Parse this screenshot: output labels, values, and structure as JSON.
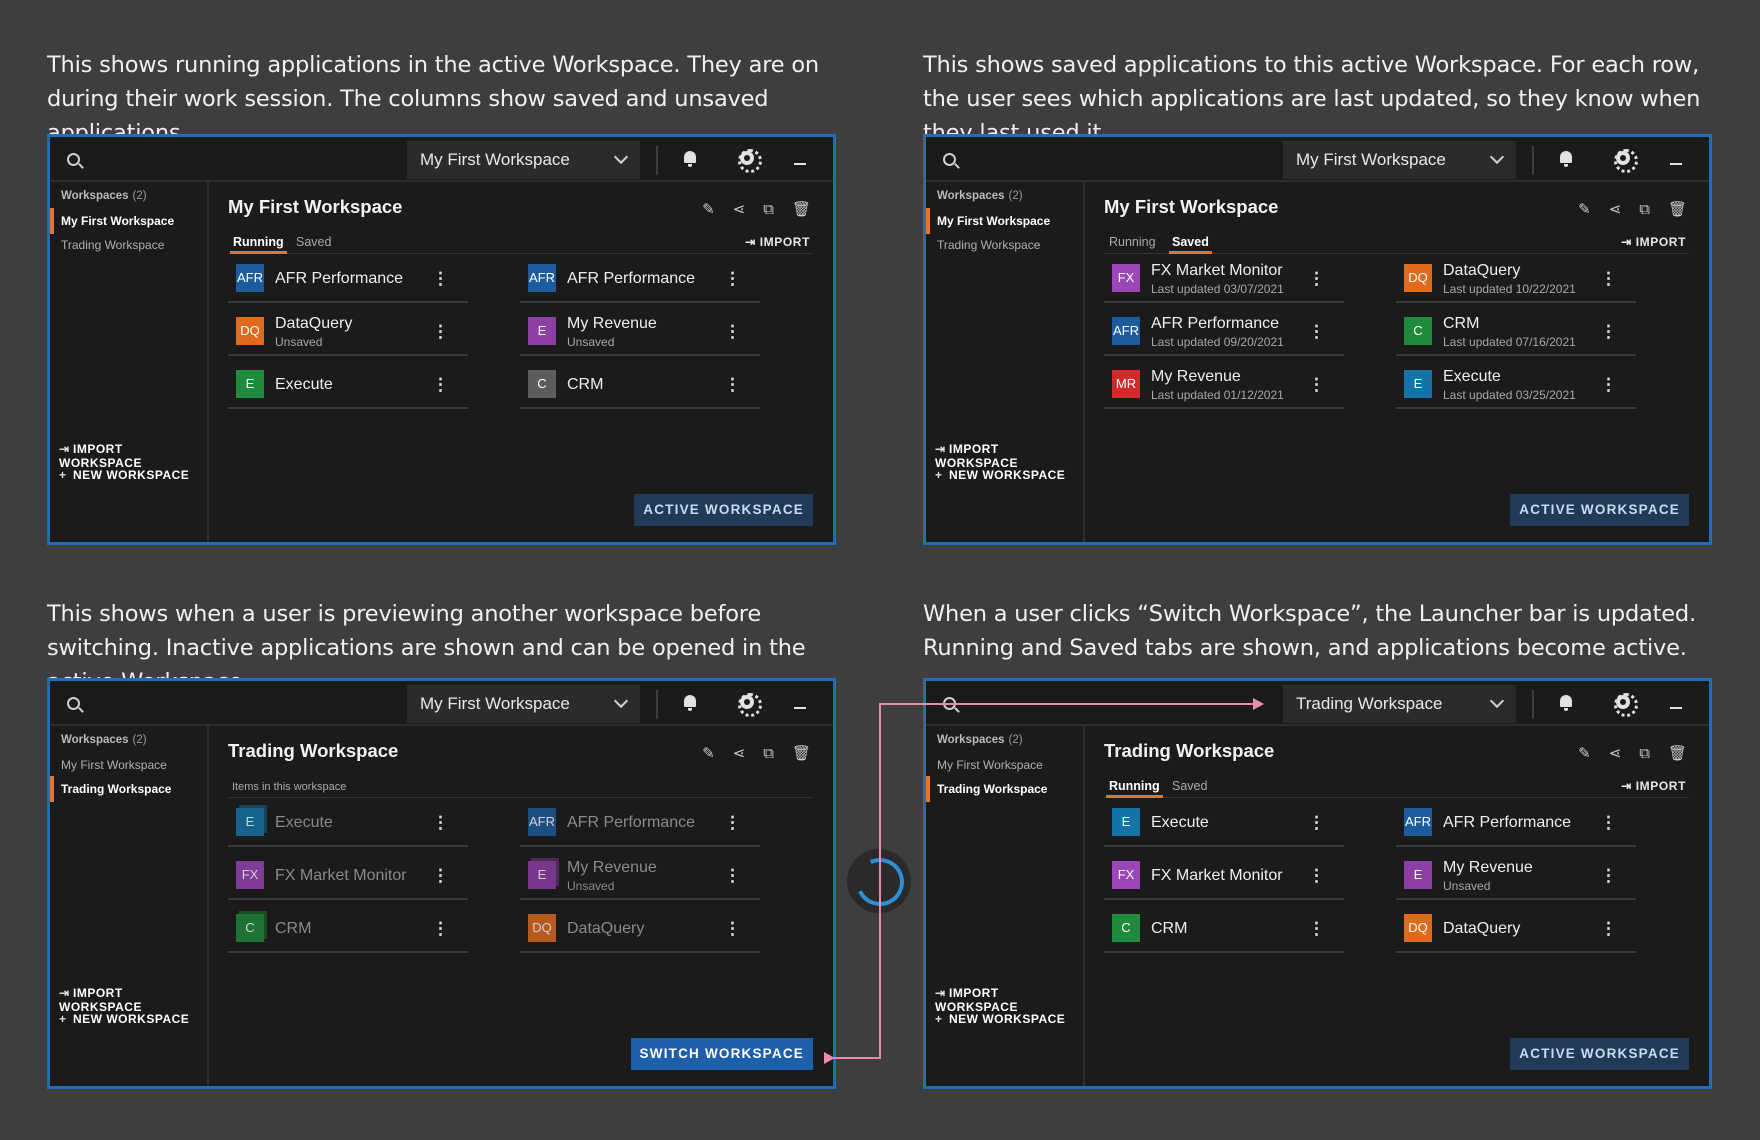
{
  "descriptions": [
    "This shows running applications in the active Workspace. They are on during their work session. The columns show saved and unsaved applications.",
    "This shows saved applications to this active Workspace. For each row, the user sees which applications are last updated, so they know when they last used it.",
    "This shows when a user is previewing another workspace before switching. Inactive applications are shown and can be opened in the active Workspace.",
    "When a user clicks “Switch Workspace”, the Launcher bar is updated. Running and Saved tabs are shown, and applications become active."
  ],
  "panels": [
    {
      "select": "My First Workspace",
      "sidebar_head": "Workspaces",
      "sidebar_count": "(2)",
      "items": [
        "My First Workspace",
        "Trading Workspace"
      ],
      "import_ws": "IMPORT WORKSPACE",
      "new_ws": "NEW WORKSPACE",
      "title": "My First Workspace",
      "tab1": "Running",
      "tab2": "Saved",
      "import": "IMPORT",
      "button": "ACTIVE WORKSPACE",
      "apps": [
        {
          "icon": "AFR",
          "name": "AFR Performance",
          "sub": ""
        },
        {
          "icon": "AFR",
          "name": "AFR Performance",
          "sub": ""
        },
        {
          "icon": "DQ",
          "name": "DataQuery",
          "sub": "Unsaved"
        },
        {
          "icon": "E",
          "name": "My Revenue",
          "sub": "Unsaved"
        },
        {
          "icon": "E",
          "name": "Execute",
          "sub": ""
        },
        {
          "icon": "C",
          "name": "CRM",
          "sub": ""
        }
      ]
    },
    {
      "select": "My First Workspace",
      "sidebar_head": "Workspaces",
      "sidebar_count": "(2)",
      "items": [
        "My First Workspace",
        "Trading Workspace"
      ],
      "import_ws": "IMPORT WORKSPACE",
      "new_ws": "NEW WORKSPACE",
      "title": "My First Workspace",
      "tab1": "Running",
      "tab2": "Saved",
      "import": "IMPORT",
      "button": "ACTIVE WORKSPACE",
      "apps": [
        {
          "icon": "FX",
          "name": "FX Market Monitor",
          "sub": "Last updated 03/07/2021"
        },
        {
          "icon": "DQ",
          "name": "DataQuery",
          "sub": "Last updated 10/22/2021"
        },
        {
          "icon": "AFR",
          "name": "AFR Performance",
          "sub": "Last updated 09/20/2021"
        },
        {
          "icon": "C",
          "name": "CRM",
          "sub": "Last updated 07/16/2021"
        },
        {
          "icon": "MR",
          "name": "My Revenue",
          "sub": "Last updated 01/12/2021"
        },
        {
          "icon": "E",
          "name": "Execute",
          "sub": "Last updated 03/25/2021"
        }
      ]
    },
    {
      "select": "My First Workspace",
      "sidebar_head": "Workspaces",
      "sidebar_count": "(2)",
      "items": [
        "My First Workspace",
        "Trading Workspace"
      ],
      "import_ws": "IMPORT WORKSPACE",
      "new_ws": "NEW WORKSPACE",
      "title": "Trading Workspace",
      "items_label": "Items in this workspace",
      "button": "SWITCH WORKSPACE",
      "apps": [
        {
          "icon": "E",
          "name": "Execute",
          "sub": ""
        },
        {
          "icon": "AFR",
          "name": "AFR Performance",
          "sub": ""
        },
        {
          "icon": "FX",
          "name": "FX Market Monitor",
          "sub": ""
        },
        {
          "icon": "E",
          "name": "My Revenue",
          "sub": "Unsaved"
        },
        {
          "icon": "C",
          "name": "CRM",
          "sub": ""
        },
        {
          "icon": "DQ",
          "name": "DataQuery",
          "sub": ""
        }
      ]
    },
    {
      "select": "Trading Workspace",
      "sidebar_head": "Workspaces",
      "sidebar_count": "(2)",
      "items": [
        "My First Workspace",
        "Trading Workspace"
      ],
      "import_ws": "IMPORT WORKSPACE",
      "new_ws": "NEW WORKSPACE",
      "title": "Trading Workspace",
      "tab1": "Running",
      "tab2": "Saved",
      "import": "IMPORT",
      "button": "ACTIVE WORKSPACE",
      "apps": [
        {
          "icon": "E",
          "name": "Execute",
          "sub": ""
        },
        {
          "icon": "AFR",
          "name": "AFR Performance",
          "sub": ""
        },
        {
          "icon": "FX",
          "name": "FX Market Monitor",
          "sub": ""
        },
        {
          "icon": "E",
          "name": "My Revenue",
          "sub": "Unsaved"
        },
        {
          "icon": "C",
          "name": "CRM",
          "sub": ""
        },
        {
          "icon": "DQ",
          "name": "DataQuery",
          "sub": ""
        }
      ]
    }
  ],
  "colors": {
    "accent": "#e8742c",
    "border": "#1f6fb8",
    "afr": "#1c5c9e",
    "dq": "#e06a1c",
    "execute_green": "#1f8a3c",
    "execute_teal": "#1474a8",
    "revenue": "#8e3fa6",
    "fx": "#9b45b8",
    "crm_gray": "#5c5c5c",
    "crm_green": "#1f8a3c",
    "mr": "#d02a2a",
    "switch_line": "#e98ab0"
  },
  "icons": {
    "search": "search-icon",
    "bell": "bell-icon",
    "gear": "gear-icon",
    "minimize": "minimize-icon",
    "edit": "pencil-icon",
    "share": "share-icon",
    "duplicate": "duplicate-icon",
    "delete": "trash-icon",
    "spinner": "loading-spinner-icon"
  }
}
